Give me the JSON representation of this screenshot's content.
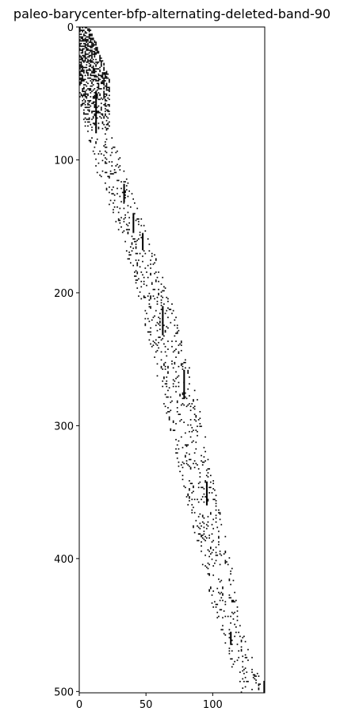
{
  "chart_data": {
    "type": "heatmap",
    "title": "paleo-barycenter-bfp-alternating-deleted-band-90",
    "xlabel": "",
    "ylabel": "",
    "xlim": [
      0,
      139
    ],
    "ylim": [
      0,
      501
    ],
    "y_inverted": true,
    "x_ticks": [
      0,
      50,
      100
    ],
    "y_ticks": [
      0,
      100,
      200,
      300,
      400,
      500
    ],
    "grid": false,
    "colors": {
      "filled": "#000000",
      "empty": "#ffffff"
    },
    "band": [
      {
        "row": 0,
        "center": 3,
        "half_width": 4,
        "density": 0.55
      },
      {
        "row": 40,
        "center": 10,
        "half_width": 12,
        "density": 0.45
      },
      {
        "row": 80,
        "center": 14,
        "half_width": 8,
        "density": 0.12
      },
      {
        "row": 110,
        "center": 24,
        "half_width": 10,
        "density": 0.1
      },
      {
        "row": 160,
        "center": 42,
        "half_width": 9,
        "density": 0.1
      },
      {
        "row": 200,
        "center": 55,
        "half_width": 11,
        "density": 0.09
      },
      {
        "row": 250,
        "center": 68,
        "half_width": 12,
        "density": 0.09
      },
      {
        "row": 300,
        "center": 80,
        "half_width": 12,
        "density": 0.09
      },
      {
        "row": 350,
        "center": 90,
        "half_width": 11,
        "density": 0.09
      },
      {
        "row": 400,
        "center": 102,
        "half_width": 10,
        "density": 0.09
      },
      {
        "row": 450,
        "center": 112,
        "half_width": 8,
        "density": 0.09
      },
      {
        "row": 501,
        "center": 130,
        "half_width": 8,
        "density": 0.08
      }
    ],
    "heavy_segments": [
      {
        "x": 12,
        "y0": 48,
        "y1": 80
      },
      {
        "x": 33,
        "y0": 118,
        "y1": 132
      },
      {
        "x": 40,
        "y0": 140,
        "y1": 155
      },
      {
        "x": 47,
        "y0": 155,
        "y1": 168
      },
      {
        "x": 62,
        "y0": 210,
        "y1": 232
      },
      {
        "x": 78,
        "y0": 258,
        "y1": 280
      },
      {
        "x": 95,
        "y0": 342,
        "y1": 360
      },
      {
        "x": 113,
        "y0": 455,
        "y1": 465
      },
      {
        "x": 138,
        "y0": 492,
        "y1": 501
      }
    ]
  }
}
